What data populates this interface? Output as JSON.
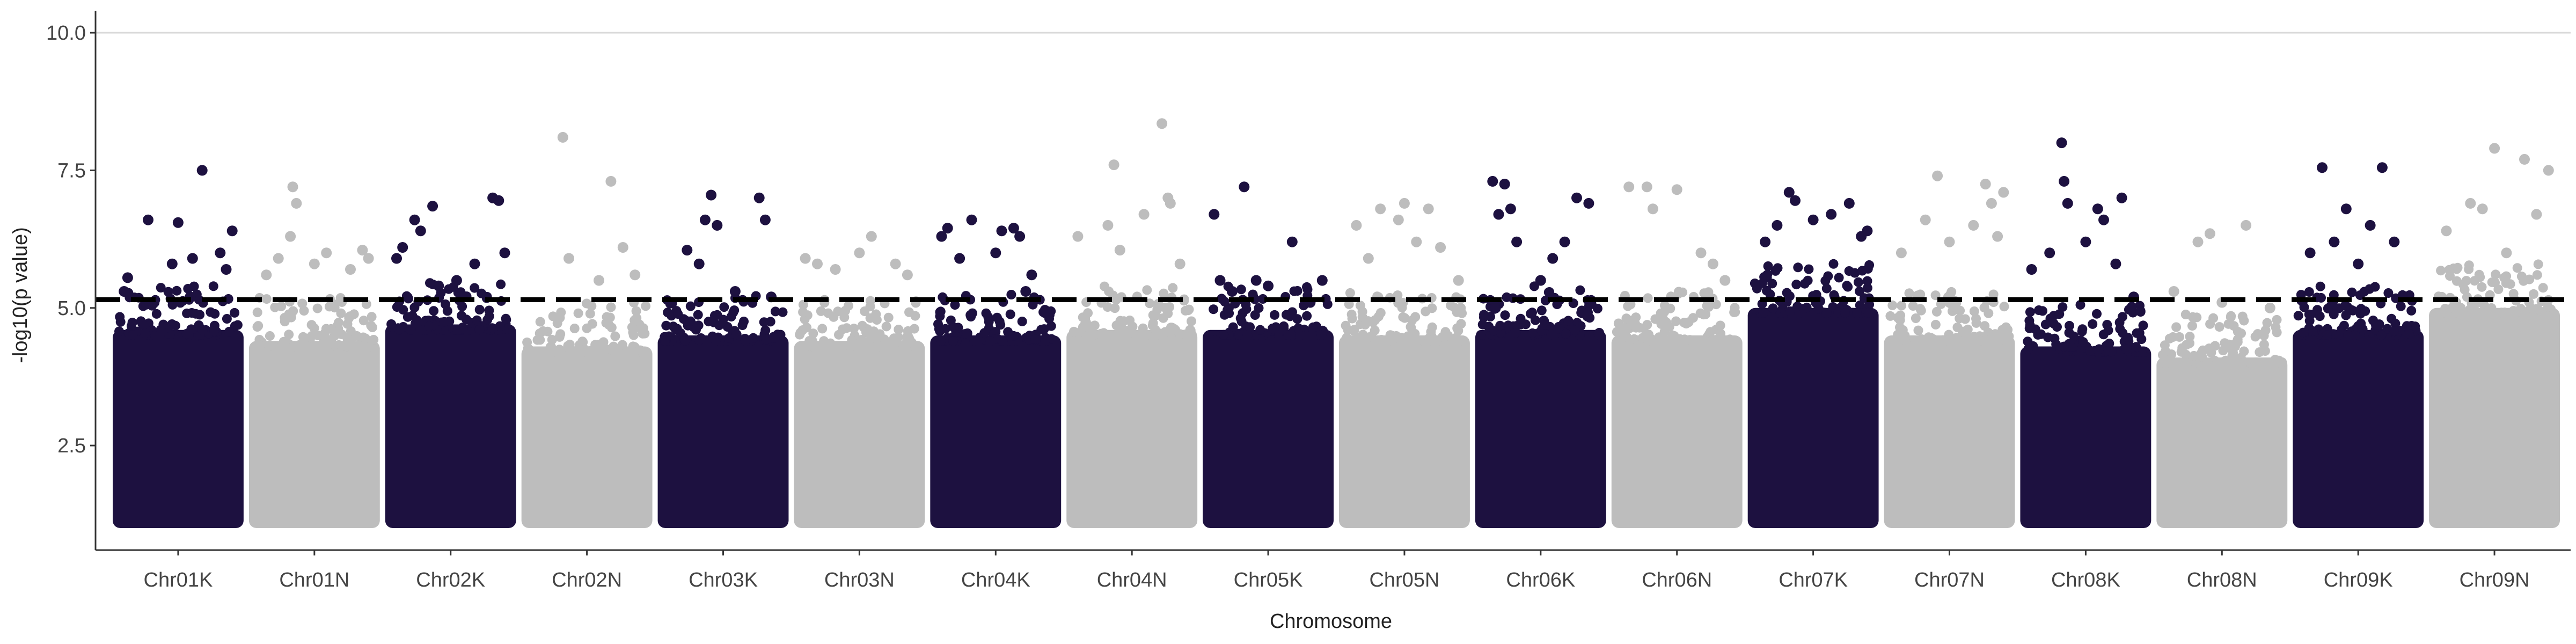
{
  "chart_data": {
    "type": "scatter",
    "subtype": "manhattan",
    "title": "",
    "xlabel": "Chromosome",
    "ylabel": "-log10(p value)",
    "ylim": [
      0.6,
      10.4
    ],
    "yticks": [
      2.5,
      5.0,
      7.5,
      10.0
    ],
    "ytick_labels": [
      "2.5",
      "5.0",
      "7.5",
      "10.0"
    ],
    "grid": "horizontal at 10.0",
    "legend": "none",
    "threshold": {
      "value": 5.15,
      "style": "dashed"
    },
    "colors": {
      "dark": "#1d1140",
      "light": "#bdbdbd",
      "axis": "#333333",
      "threshold": "#000000",
      "gridline": "#d9d9d9"
    },
    "categories": [
      "Chr01K",
      "Chr01N",
      "Chr02K",
      "Chr02N",
      "Chr03K",
      "Chr03N",
      "Chr04K",
      "Chr04N",
      "Chr05K",
      "Chr05N",
      "Chr06K",
      "Chr06N",
      "Chr07K",
      "Chr07N",
      "Chr08K",
      "Chr08N",
      "Chr09K",
      "Chr09N"
    ],
    "series": [
      {
        "chromosome": "Chr01K",
        "color": "dark",
        "dense_top": 4.6,
        "outliers": [
          [
            0.05,
            5.3
          ],
          [
            0.08,
            5.55
          ],
          [
            0.25,
            6.6
          ],
          [
            0.45,
            5.8
          ],
          [
            0.5,
            6.55
          ],
          [
            0.62,
            5.9
          ],
          [
            0.7,
            7.5
          ],
          [
            0.85,
            6.0
          ],
          [
            0.9,
            5.7
          ],
          [
            0.95,
            6.4
          ],
          [
            0.3,
            5.1
          ],
          [
            0.6,
            5.2
          ]
        ]
      },
      {
        "chromosome": "Chr01N",
        "color": "light",
        "dense_top": 4.4,
        "outliers": [
          [
            0.1,
            5.6
          ],
          [
            0.2,
            5.9
          ],
          [
            0.3,
            6.3
          ],
          [
            0.32,
            7.2
          ],
          [
            0.35,
            6.9
          ],
          [
            0.5,
            5.8
          ],
          [
            0.6,
            6.0
          ],
          [
            0.8,
            5.7
          ],
          [
            0.9,
            6.05
          ],
          [
            0.95,
            5.9
          ]
        ]
      },
      {
        "chromosome": "Chr02K",
        "color": "dark",
        "dense_top": 4.7,
        "outliers": [
          [
            0.05,
            5.9
          ],
          [
            0.1,
            6.1
          ],
          [
            0.2,
            6.6
          ],
          [
            0.25,
            6.4
          ],
          [
            0.35,
            6.85
          ],
          [
            0.4,
            5.4
          ],
          [
            0.55,
            5.5
          ],
          [
            0.7,
            5.8
          ],
          [
            0.85,
            7.0
          ],
          [
            0.9,
            6.95
          ],
          [
            0.95,
            6.0
          ]
        ]
      },
      {
        "chromosome": "Chr02N",
        "color": "light",
        "dense_top": 4.3,
        "outliers": [
          [
            0.3,
            8.1
          ],
          [
            0.35,
            5.9
          ],
          [
            0.6,
            5.5
          ],
          [
            0.7,
            7.3
          ],
          [
            0.8,
            6.1
          ],
          [
            0.9,
            5.6
          ]
        ]
      },
      {
        "chromosome": "Chr03K",
        "color": "dark",
        "dense_top": 4.5,
        "outliers": [
          [
            0.2,
            6.05
          ],
          [
            0.3,
            5.8
          ],
          [
            0.35,
            6.6
          ],
          [
            0.4,
            7.05
          ],
          [
            0.45,
            6.5
          ],
          [
            0.6,
            5.3
          ],
          [
            0.8,
            7.0
          ],
          [
            0.85,
            6.6
          ],
          [
            0.9,
            5.2
          ]
        ]
      },
      {
        "chromosome": "Chr03N",
        "color": "light",
        "dense_top": 4.4,
        "outliers": [
          [
            0.05,
            5.9
          ],
          [
            0.15,
            5.8
          ],
          [
            0.3,
            5.7
          ],
          [
            0.5,
            6.0
          ],
          [
            0.6,
            6.3
          ],
          [
            0.8,
            5.8
          ],
          [
            0.9,
            5.6
          ]
        ]
      },
      {
        "chromosome": "Chr04K",
        "color": "dark",
        "dense_top": 4.5,
        "outliers": [
          [
            0.05,
            6.3
          ],
          [
            0.1,
            6.45
          ],
          [
            0.2,
            5.9
          ],
          [
            0.3,
            6.6
          ],
          [
            0.5,
            6.0
          ],
          [
            0.55,
            6.4
          ],
          [
            0.65,
            6.45
          ],
          [
            0.7,
            6.3
          ],
          [
            0.75,
            5.3
          ],
          [
            0.8,
            5.6
          ]
        ]
      },
      {
        "chromosome": "Chr04N",
        "color": "light",
        "dense_top": 4.6,
        "outliers": [
          [
            0.05,
            6.3
          ],
          [
            0.3,
            6.5
          ],
          [
            0.35,
            7.6
          ],
          [
            0.4,
            6.05
          ],
          [
            0.6,
            6.7
          ],
          [
            0.75,
            8.35
          ],
          [
            0.8,
            7.0
          ],
          [
            0.82,
            6.9
          ],
          [
            0.9,
            5.8
          ]
        ]
      },
      {
        "chromosome": "Chr05K",
        "color": "dark",
        "dense_top": 4.6,
        "outliers": [
          [
            0.05,
            6.7
          ],
          [
            0.1,
            5.5
          ],
          [
            0.2,
            5.3
          ],
          [
            0.3,
            7.2
          ],
          [
            0.4,
            5.5
          ],
          [
            0.5,
            5.4
          ],
          [
            0.7,
            6.2
          ],
          [
            0.85,
            5.1
          ],
          [
            0.95,
            5.5
          ]
        ]
      },
      {
        "chromosome": "Chr05N",
        "color": "light",
        "dense_top": 4.5,
        "outliers": [
          [
            0.1,
            6.5
          ],
          [
            0.2,
            5.9
          ],
          [
            0.3,
            6.8
          ],
          [
            0.45,
            6.6
          ],
          [
            0.5,
            6.9
          ],
          [
            0.6,
            6.2
          ],
          [
            0.7,
            6.8
          ],
          [
            0.8,
            6.1
          ],
          [
            0.95,
            5.5
          ]
        ]
      },
      {
        "chromosome": "Chr06K",
        "color": "dark",
        "dense_top": 4.6,
        "outliers": [
          [
            0.1,
            7.3
          ],
          [
            0.15,
            6.7
          ],
          [
            0.2,
            7.25
          ],
          [
            0.25,
            6.8
          ],
          [
            0.3,
            6.2
          ],
          [
            0.5,
            5.5
          ],
          [
            0.6,
            5.9
          ],
          [
            0.7,
            6.2
          ],
          [
            0.8,
            7.0
          ],
          [
            0.9,
            6.9
          ]
        ]
      },
      {
        "chromosome": "Chr06N",
        "color": "light",
        "dense_top": 4.5,
        "outliers": [
          [
            0.1,
            7.2
          ],
          [
            0.25,
            7.2
          ],
          [
            0.3,
            6.8
          ],
          [
            0.5,
            7.15
          ],
          [
            0.7,
            6.0
          ],
          [
            0.8,
            5.8
          ],
          [
            0.9,
            5.5
          ]
        ]
      },
      {
        "chromosome": "Chr07K",
        "color": "dark",
        "dense_top": 5.0,
        "outliers": [
          [
            0.1,
            6.2
          ],
          [
            0.2,
            6.5
          ],
          [
            0.3,
            7.1
          ],
          [
            0.35,
            6.95
          ],
          [
            0.5,
            6.6
          ],
          [
            0.65,
            6.7
          ],
          [
            0.8,
            6.9
          ],
          [
            0.9,
            6.3
          ],
          [
            0.95,
            6.4
          ]
        ]
      },
      {
        "chromosome": "Chr07N",
        "color": "light",
        "dense_top": 4.5,
        "outliers": [
          [
            0.1,
            6.0
          ],
          [
            0.3,
            6.6
          ],
          [
            0.4,
            7.4
          ],
          [
            0.5,
            6.2
          ],
          [
            0.7,
            6.5
          ],
          [
            0.8,
            7.25
          ],
          [
            0.85,
            6.9
          ],
          [
            0.9,
            6.3
          ],
          [
            0.95,
            7.1
          ]
        ]
      },
      {
        "chromosome": "Chr08K",
        "color": "dark",
        "dense_top": 4.3,
        "outliers": [
          [
            0.05,
            5.7
          ],
          [
            0.2,
            6.0
          ],
          [
            0.3,
            8.0
          ],
          [
            0.32,
            7.3
          ],
          [
            0.35,
            6.9
          ],
          [
            0.5,
            6.2
          ],
          [
            0.6,
            6.8
          ],
          [
            0.65,
            6.6
          ],
          [
            0.75,
            5.8
          ],
          [
            0.8,
            7.0
          ],
          [
            0.9,
            5.2
          ]
        ]
      },
      {
        "chromosome": "Chr08N",
        "color": "light",
        "dense_top": 4.1,
        "outliers": [
          [
            0.1,
            5.3
          ],
          [
            0.3,
            6.2
          ],
          [
            0.4,
            6.35
          ],
          [
            0.5,
            5.1
          ],
          [
            0.7,
            6.5
          ],
          [
            0.9,
            5.0
          ]
        ]
      },
      {
        "chromosome": "Chr09K",
        "color": "dark",
        "dense_top": 4.6,
        "outliers": [
          [
            0.1,
            6.0
          ],
          [
            0.2,
            7.55
          ],
          [
            0.3,
            6.2
          ],
          [
            0.4,
            6.8
          ],
          [
            0.5,
            5.8
          ],
          [
            0.6,
            6.5
          ],
          [
            0.7,
            7.55
          ],
          [
            0.8,
            6.2
          ],
          [
            0.9,
            5.2
          ]
        ]
      },
      {
        "chromosome": "Chr09N",
        "color": "light",
        "dense_top": 5.0,
        "outliers": [
          [
            0.1,
            6.4
          ],
          [
            0.3,
            6.9
          ],
          [
            0.4,
            6.8
          ],
          [
            0.5,
            7.9
          ],
          [
            0.6,
            6.0
          ],
          [
            0.75,
            7.7
          ],
          [
            0.85,
            6.7
          ],
          [
            0.95,
            7.5
          ]
        ]
      }
    ]
  }
}
